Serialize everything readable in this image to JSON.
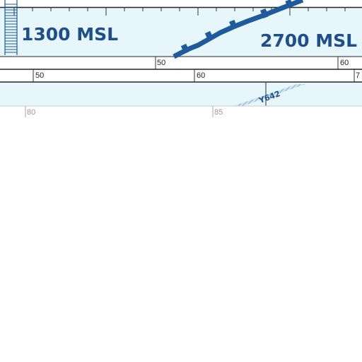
{
  "chart": {
    "upper_band": {
      "left_altitude_label": "1300 MSL",
      "right_altitude_label": "2700 MSL"
    },
    "scale_upper": {
      "labels": [
        "50",
        "60"
      ]
    },
    "scale_lower": {
      "labels": [
        "50",
        "60",
        "7"
      ]
    },
    "airway_label": "Y642",
    "bottom_scale": {
      "labels": [
        "80",
        "85"
      ]
    },
    "colors": {
      "band_fill": "#e6f6fb",
      "route_blue": "#1e5a9c",
      "text_blue": "#1e4f8c",
      "hatch_blue": "#6fa6c8"
    }
  }
}
